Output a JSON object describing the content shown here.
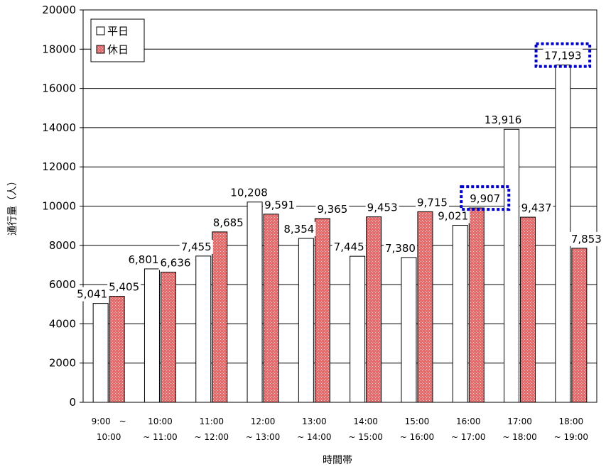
{
  "chart_data": {
    "type": "bar",
    "categories": [
      [
        "9:00　~",
        "10:00"
      ],
      [
        "10:00",
        "~ 11:00"
      ],
      [
        "11:00",
        "~ 12:00"
      ],
      [
        "12:00",
        "~ 13:00"
      ],
      [
        "13:00",
        "~ 14:00"
      ],
      [
        "14:00",
        "~ 15:00"
      ],
      [
        "15:00",
        "~ 16:00"
      ],
      [
        "16:00",
        "~ 17:00"
      ],
      [
        "17:00",
        "~ 18:00"
      ],
      [
        "18:00",
        "~ 19:00"
      ]
    ],
    "series": [
      {
        "name": "平日",
        "values": [
          5041,
          6801,
          7455,
          10208,
          8354,
          7445,
          7380,
          9021,
          13916,
          17193
        ],
        "labels": [
          "5,041",
          "6,801",
          "7,455",
          "10,208",
          "8,354",
          "7,445",
          "7,380",
          "9,021",
          "13,916",
          "17,193"
        ],
        "color": "#ffffff"
      },
      {
        "name": "休日",
        "values": [
          5405,
          6636,
          8685,
          9591,
          9365,
          9453,
          9715,
          9907,
          9437,
          7853
        ],
        "labels": [
          "5,405",
          "6,636",
          "8,685",
          "9,591",
          "9,365",
          "9,453",
          "9,715",
          "9,907",
          "9,437",
          "7,853"
        ],
        "color": "#e86a6a"
      }
    ],
    "xlabel": "時間帯",
    "ylabel": "通行量（人）",
    "ylim": [
      0,
      20000
    ],
    "yticks": [
      0,
      2000,
      4000,
      6000,
      8000,
      10000,
      12000,
      14000,
      16000,
      18000,
      20000
    ],
    "grid": true,
    "legend_position": "top-left",
    "highlighted_labels": [
      "休日 16:00~17:00",
      "平日 18:00~19:00"
    ],
    "highlight_color": "#0000cc"
  }
}
